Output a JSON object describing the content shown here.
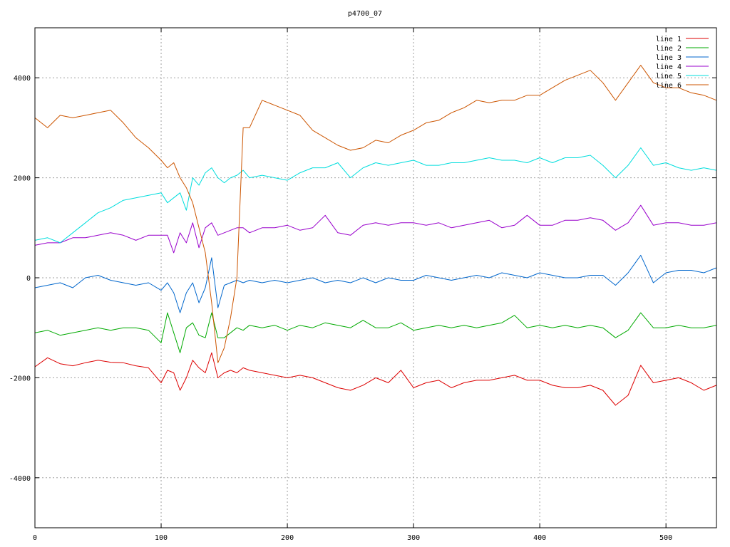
{
  "chart_data": {
    "type": "line",
    "title": "p4700_07",
    "xlabel": "",
    "ylabel": "",
    "xlim": [
      0,
      540
    ],
    "ylim": [
      -5000,
      5000
    ],
    "xticks": [
      0,
      100,
      200,
      300,
      400,
      500
    ],
    "yticks": [
      -4000,
      -2000,
      0,
      2000,
      4000
    ],
    "xtick_labels": [
      "0",
      "100",
      "200",
      "300",
      "400",
      "500"
    ],
    "ytick_labels": [
      "-4000",
      "-2000",
      "0",
      "2000",
      "4000"
    ],
    "grid": true,
    "legend_position": "top-right",
    "x": [
      0,
      10,
      20,
      30,
      40,
      50,
      60,
      70,
      80,
      90,
      100,
      105,
      110,
      115,
      120,
      125,
      130,
      135,
      140,
      145,
      150,
      155,
      160,
      165,
      170,
      180,
      190,
      200,
      210,
      220,
      230,
      240,
      250,
      260,
      270,
      280,
      290,
      300,
      310,
      320,
      330,
      340,
      350,
      360,
      370,
      380,
      390,
      400,
      410,
      420,
      430,
      440,
      450,
      460,
      470,
      480,
      490,
      500,
      510,
      520,
      530,
      540
    ],
    "series": [
      {
        "name": "line 1",
        "color": "#dd0000",
        "values": [
          -1780,
          -1600,
          -1720,
          -1760,
          -1700,
          -1650,
          -1690,
          -1700,
          -1760,
          -1800,
          -2100,
          -1850,
          -1900,
          -2250,
          -2000,
          -1650,
          -1800,
          -1900,
          -1500,
          -2000,
          -1900,
          -1850,
          -1900,
          -1800,
          -1850,
          -1900,
          -1950,
          -2000,
          -1950,
          -2000,
          -2100,
          -2200,
          -2250,
          -2150,
          -2000,
          -2100,
          -1850,
          -2200,
          -2100,
          -2050,
          -2200,
          -2100,
          -2050,
          -2050,
          -2000,
          -1950,
          -2050,
          -2050,
          -2150,
          -2200,
          -2200,
          -2150,
          -2250,
          -2550,
          -2350,
          -1750,
          -2100,
          -2050,
          -2000,
          -2100,
          -2250,
          -2150
        ]
      },
      {
        "name": "line 2",
        "color": "#00aa00",
        "values": [
          -1100,
          -1050,
          -1150,
          -1100,
          -1050,
          -1000,
          -1050,
          -1000,
          -1000,
          -1050,
          -1300,
          -700,
          -1100,
          -1500,
          -1000,
          -900,
          -1150,
          -1200,
          -700,
          -1200,
          -1200,
          -1100,
          -1000,
          -1050,
          -950,
          -1000,
          -950,
          -1050,
          -950,
          -1000,
          -900,
          -950,
          -1000,
          -850,
          -1000,
          -1000,
          -900,
          -1050,
          -1000,
          -950,
          -1000,
          -950,
          -1000,
          -950,
          -900,
          -750,
          -1000,
          -950,
          -1000,
          -950,
          -1000,
          -950,
          -1000,
          -1200,
          -1050,
          -700,
          -1000,
          -1000,
          -950,
          -1000,
          -1000,
          -950
        ]
      },
      {
        "name": "line 3",
        "color": "#0066cc",
        "values": [
          -200,
          -150,
          -100,
          -200,
          0,
          50,
          -50,
          -100,
          -150,
          -100,
          -250,
          -100,
          -300,
          -700,
          -300,
          -100,
          -500,
          -200,
          400,
          -600,
          -150,
          -100,
          -50,
          -100,
          -50,
          -100,
          -50,
          -100,
          -50,
          0,
          -100,
          -50,
          -100,
          0,
          -100,
          0,
          -50,
          -50,
          50,
          0,
          -50,
          0,
          50,
          0,
          100,
          50,
          0,
          100,
          50,
          0,
          0,
          50,
          50,
          -150,
          100,
          450,
          -100,
          100,
          150,
          150,
          100,
          200
        ]
      },
      {
        "name": "line 4",
        "color": "#9900cc",
        "values": [
          650,
          700,
          700,
          800,
          800,
          850,
          900,
          850,
          750,
          850,
          850,
          850,
          500,
          900,
          700,
          1100,
          600,
          1000,
          1100,
          850,
          900,
          950,
          1000,
          1000,
          900,
          1000,
          1000,
          1050,
          950,
          1000,
          1250,
          900,
          850,
          1050,
          1100,
          1050,
          1100,
          1100,
          1050,
          1100,
          1000,
          1050,
          1100,
          1150,
          1000,
          1050,
          1250,
          1050,
          1050,
          1150,
          1150,
          1200,
          1150,
          950,
          1100,
          1450,
          1050,
          1100,
          1100,
          1050,
          1050,
          1100
        ]
      },
      {
        "name": "line 5",
        "color": "#00dddd",
        "values": [
          750,
          800,
          700,
          900,
          1100,
          1300,
          1400,
          1550,
          1600,
          1650,
          1700,
          1500,
          1600,
          1700,
          1350,
          2000,
          1850,
          2100,
          2200,
          2000,
          1900,
          2000,
          2050,
          2150,
          2000,
          2050,
          2000,
          1950,
          2100,
          2200,
          2200,
          2300,
          2000,
          2200,
          2300,
          2250,
          2300,
          2350,
          2250,
          2250,
          2300,
          2300,
          2350,
          2400,
          2350,
          2350,
          2300,
          2400,
          2300,
          2400,
          2400,
          2450,
          2250,
          2000,
          2250,
          2600,
          2250,
          2300,
          2200,
          2150,
          2200,
          2150
        ]
      },
      {
        "name": "line 6",
        "color": "#cc5500",
        "values": [
          3200,
          3000,
          3250,
          3200,
          3250,
          3300,
          3350,
          3100,
          2800,
          2600,
          2350,
          2200,
          2300,
          2000,
          1800,
          1500,
          1000,
          500,
          -500,
          -1700,
          -1400,
          -800,
          0,
          3000,
          3000,
          3550,
          3450,
          3350,
          3250,
          2950,
          2800,
          2650,
          2550,
          2600,
          2750,
          2700,
          2850,
          2950,
          3100,
          3150,
          3300,
          3400,
          3550,
          3500,
          3550,
          3550,
          3650,
          3650,
          3800,
          3950,
          4050,
          4150,
          3900,
          3550,
          3900,
          4250,
          3900,
          3800,
          3800,
          3700,
          3650,
          3550
        ]
      }
    ]
  }
}
